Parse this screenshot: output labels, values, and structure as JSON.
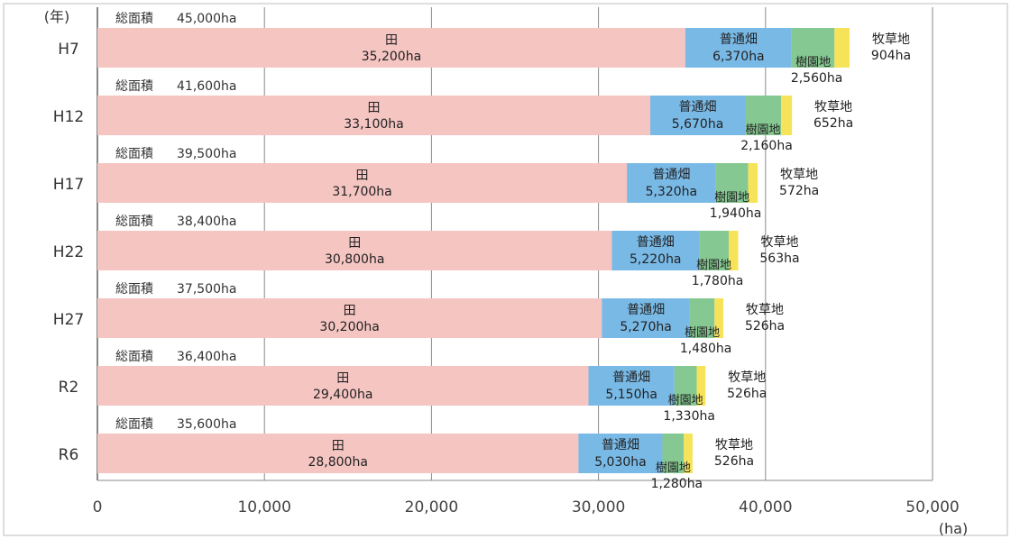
{
  "chart_data": {
    "type": "bar",
    "orientation": "horizontal",
    "stacked": true,
    "year_axis_label": "(年)",
    "unit_label": "(ha)",
    "xlim": [
      0,
      50000
    ],
    "xticks": [
      "0",
      "10,000",
      "20,000",
      "30,000",
      "40,000",
      "50,000"
    ],
    "grid": true,
    "categories": [
      "H7",
      "H12",
      "H17",
      "H22",
      "H27",
      "R2",
      "R6"
    ],
    "total_prefix": "総面積",
    "totals": [
      {
        "value": 45000,
        "label": "45,000ha"
      },
      {
        "value": 41600,
        "label": "41,600ha"
      },
      {
        "value": 39500,
        "label": "39,500ha"
      },
      {
        "value": 38400,
        "label": "38,400ha"
      },
      {
        "value": 37500,
        "label": "37,500ha"
      },
      {
        "value": 36400,
        "label": "36,400ha"
      },
      {
        "value": 35600,
        "label": "35,600ha"
      }
    ],
    "series": [
      {
        "name": "田",
        "color": "#f5c5c2",
        "values": [
          35200,
          33100,
          31700,
          30800,
          30200,
          29400,
          28800
        ],
        "labels": [
          "35,200ha",
          "33,100ha",
          "31,700ha",
          "30,800ha",
          "30,200ha",
          "29,400ha",
          "28,800ha"
        ]
      },
      {
        "name": "普通畑",
        "color": "#79b9e6",
        "values": [
          6370,
          5670,
          5320,
          5220,
          5270,
          5150,
          5030
        ],
        "labels": [
          "6,370ha",
          "5,670ha",
          "5,320ha",
          "5,220ha",
          "5,270ha",
          "5,150ha",
          "5,030ha"
        ]
      },
      {
        "name": "樹園地",
        "color": "#86c891",
        "values": [
          2560,
          2160,
          1940,
          1780,
          1480,
          1330,
          1280
        ],
        "labels": [
          "2,560ha",
          "2,160ha",
          "1,940ha",
          "1,780ha",
          "1,480ha",
          "1,330ha",
          "1,280ha"
        ]
      },
      {
        "name": "牧草地",
        "color": "#f6e35a",
        "values": [
          904,
          652,
          572,
          563,
          526,
          526,
          526
        ],
        "labels": [
          "904ha",
          "652ha",
          "572ha",
          "563ha",
          "526ha",
          "526ha",
          "526ha"
        ]
      }
    ]
  }
}
